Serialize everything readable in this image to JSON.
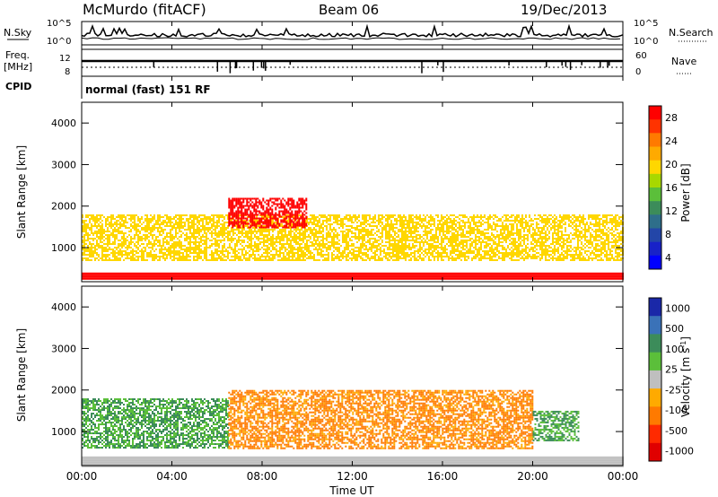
{
  "header": {
    "station": "McMurdo (fitACF)",
    "beam": "Beam 06",
    "date": "19/Dec/2013"
  },
  "status_panels": {
    "nsky_label": "N.Sky",
    "nsky_top_tick": "10^5",
    "nsky_bottom_tick": "10^0",
    "nsearch_label": "N.Search",
    "nsearch_top_tick": "10^5",
    "nsearch_bottom_tick": "10^0",
    "freq_label_1": "Freq.",
    "freq_label_2": "[MHz]",
    "freq_ticks": [
      "12",
      "8"
    ],
    "nave_label": "Nave",
    "nave_ticks": [
      "60",
      "0"
    ],
    "cpid_label": "CPID",
    "cpid_value": "normal (fast) 151 RF"
  },
  "chart_data": [
    {
      "type": "heatmap",
      "panel": "power",
      "ylabel": "Slant Range [km]",
      "ylim": [
        180,
        4500
      ],
      "yticks": [
        "1000",
        "2000",
        "3000",
        "4000"
      ],
      "xlim": [
        "00:00",
        "24:00"
      ],
      "colorbar": {
        "label": "Power [dB]",
        "ticks": [
          "28",
          "24",
          "20",
          "16",
          "12",
          "8",
          "4"
        ],
        "colors": [
          "#ff0000",
          "#ff3300",
          "#ff7a00",
          "#ffaa00",
          "#ffd700",
          "#a8d800",
          "#5bbf3a",
          "#3c8c5a",
          "#2e6e8a",
          "#2346a8",
          "#1822c8",
          "#0000ff"
        ]
      },
      "features": [
        {
          "desc": "ground scatter band",
          "range_km": [
            250,
            400
          ],
          "time": [
            "00:00",
            "24:00"
          ],
          "power_db": 28
        },
        {
          "desc": "main echo band",
          "range_km": [
            700,
            1800
          ],
          "time": [
            "00:00",
            "24:00"
          ],
          "power_db": 20
        },
        {
          "desc": "enhanced patch",
          "range_km": [
            1500,
            2200
          ],
          "time": [
            "06:30",
            "10:00"
          ],
          "power_db": 28
        }
      ]
    },
    {
      "type": "heatmap",
      "panel": "velocity",
      "ylabel": "Slant Range [km]",
      "ylim": [
        180,
        4500
      ],
      "yticks": [
        "1000",
        "2000",
        "3000",
        "4000"
      ],
      "xlabel": "Time UT",
      "xticks": [
        "00:00",
        "04:00",
        "08:00",
        "12:00",
        "16:00",
        "20:00",
        "00:00"
      ],
      "colorbar": {
        "label": "Velocity [m s^-1]",
        "ticks": [
          "1000",
          "500",
          "100",
          "25",
          "-25",
          "-100",
          "-500",
          "-1000"
        ],
        "colors": [
          "#1a28a8",
          "#3a72b8",
          "#3c8c5a",
          "#5bbf3a",
          "#bfbfbf",
          "#ffaa00",
          "#ff7a00",
          "#ff2a00",
          "#e00000"
        ]
      },
      "features": [
        {
          "desc": "ground scatter",
          "range_km": [
            180,
            400
          ],
          "time": [
            "00:00",
            "24:00"
          ],
          "velocity": 0
        },
        {
          "desc": "positive velocity region",
          "range_km": [
            600,
            1800
          ],
          "time": [
            "00:00",
            "06:30"
          ],
          "velocity": 100
        },
        {
          "desc": "negative velocity region",
          "range_km": [
            600,
            2000
          ],
          "time": [
            "06:30",
            "20:00"
          ],
          "velocity": -100
        },
        {
          "desc": "positive velocity region",
          "range_km": [
            800,
            1500
          ],
          "time": [
            "20:00",
            "22:00"
          ],
          "velocity": 100
        }
      ]
    }
  ]
}
